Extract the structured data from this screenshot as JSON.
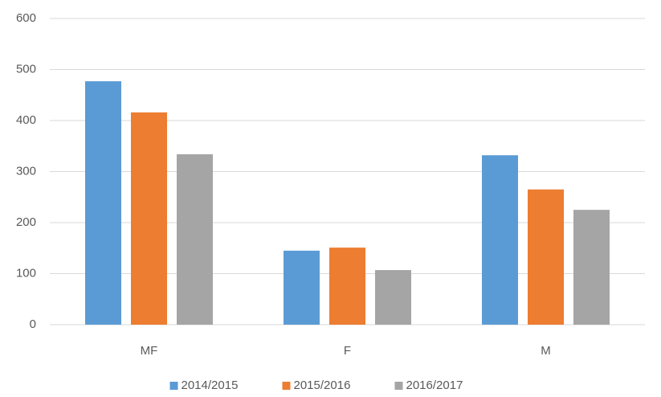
{
  "chart_data": {
    "type": "bar",
    "categories": [
      "MF",
      "F",
      "M"
    ],
    "series": [
      {
        "name": "2014/2015",
        "color": "#5b9bd5",
        "values": [
          477,
          145,
          332
        ]
      },
      {
        "name": "2015/2016",
        "color": "#ed7d31",
        "values": [
          416,
          151,
          265
        ]
      },
      {
        "name": "2016/2017",
        "color": "#a5a5a5",
        "values": [
          334,
          107,
          225
        ]
      }
    ],
    "ylim": [
      0,
      600
    ],
    "yticks": [
      0,
      100,
      200,
      300,
      400,
      500,
      600
    ],
    "grid": true,
    "legend": "bottom"
  }
}
